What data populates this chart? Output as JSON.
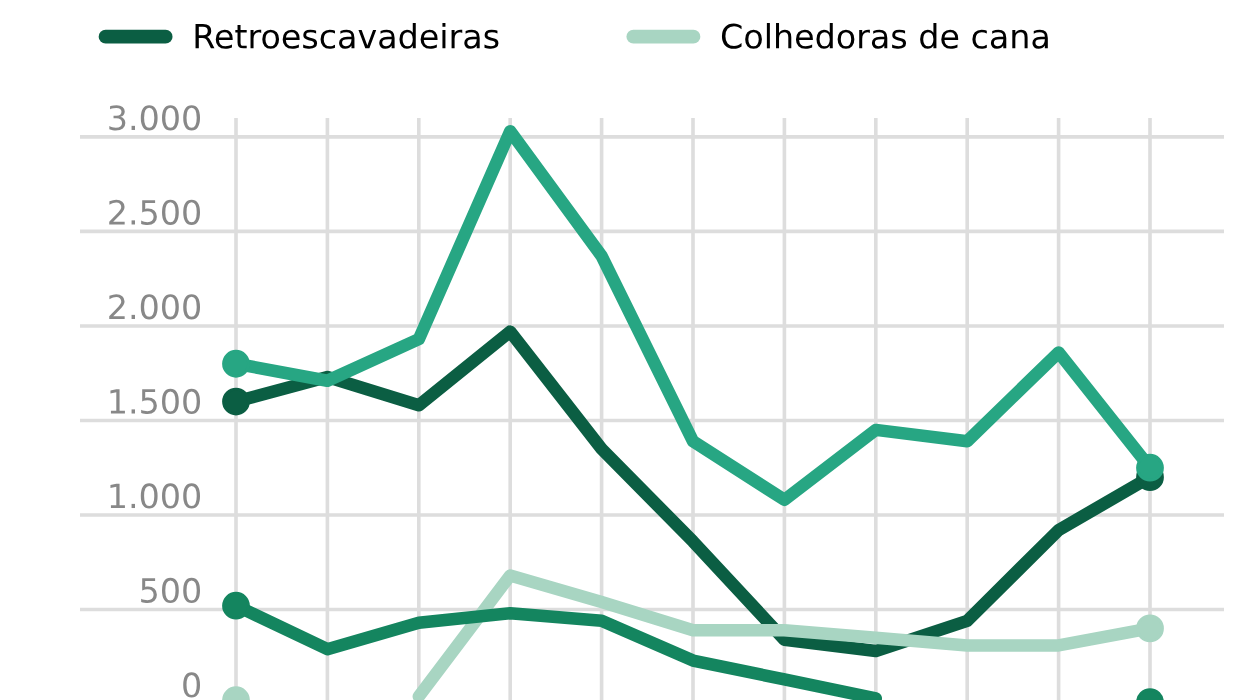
{
  "chart_data": {
    "type": "line",
    "categories": [
      null,
      null,
      null,
      null,
      null,
      null,
      null,
      null,
      null,
      null,
      null
    ],
    "series": [
      {
        "name": "Retroescavadeiras",
        "color": "#0b5e43",
        "values": [
          1600,
          1730,
          1580,
          1970,
          1350,
          860,
          340,
          280,
          440,
          920,
          1200
        ]
      },
      {
        "name": "Colhedoras de cana",
        "color": "#a8d5c2",
        "values": [
          20,
          null,
          40,
          680,
          540,
          390,
          390,
          350,
          310,
          310,
          400
        ]
      },
      {
        "color": "#27a683",
        "values": [
          1800,
          1710,
          1930,
          3030,
          2370,
          1390,
          1080,
          1450,
          1390,
          1860,
          1250
        ]
      },
      {
        "color": "#14855f",
        "values": [
          520,
          290,
          430,
          480,
          440,
          230,
          130,
          30,
          null,
          null,
          10
        ]
      }
    ],
    "ylim": [
      0,
      3100
    ],
    "yticks": [
      {
        "value": 0,
        "label": "0"
      },
      {
        "value": 500,
        "label": "500"
      },
      {
        "value": 1000,
        "label": "1.000"
      },
      {
        "value": 1500,
        "label": "1.500"
      },
      {
        "value": 2000,
        "label": "2.000"
      },
      {
        "value": 2500,
        "label": "2.500"
      },
      {
        "value": 3000,
        "label": "3.000"
      }
    ],
    "grid": true,
    "legend": "top left",
    "line_style": "solid"
  }
}
